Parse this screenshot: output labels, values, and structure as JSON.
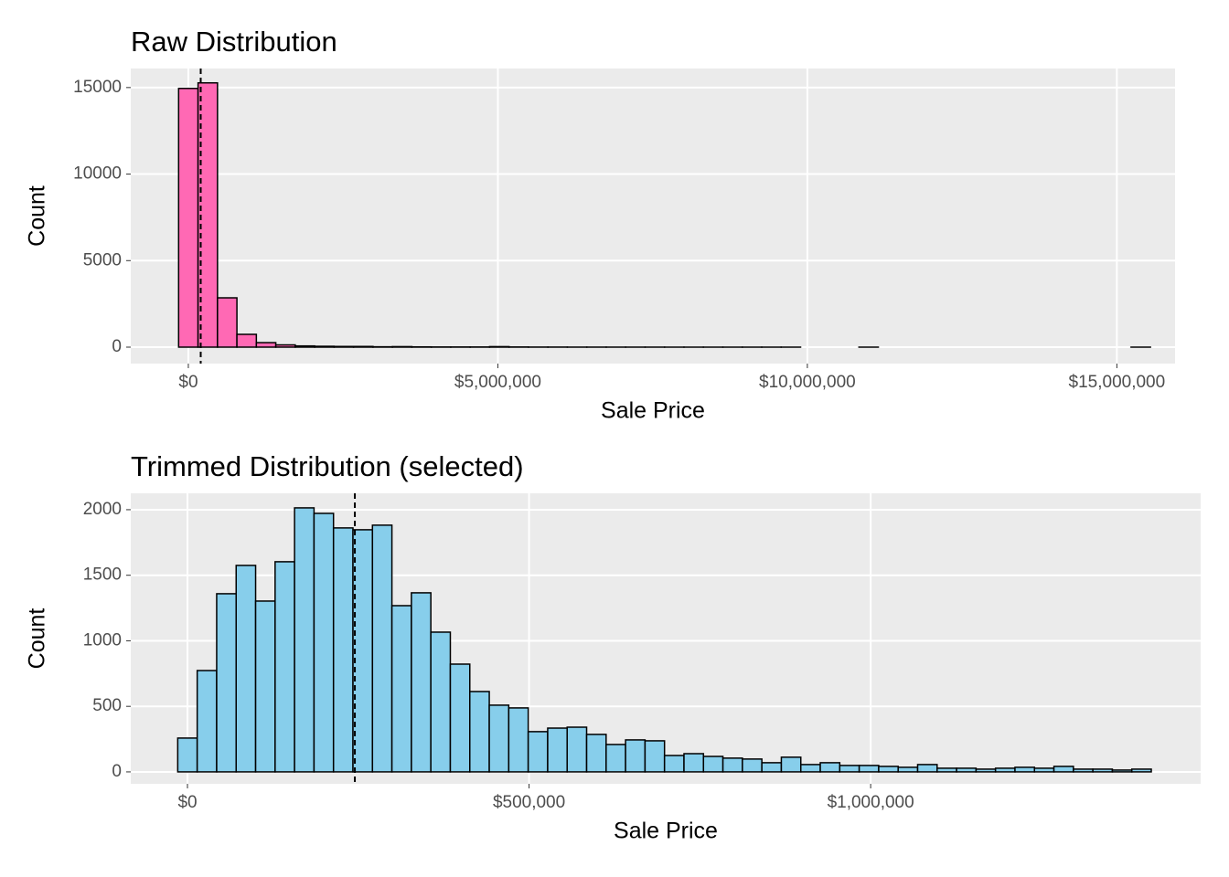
{
  "chart_data": [
    {
      "type": "histogram",
      "title": "Raw Distribution",
      "x_label": "Sale Price",
      "y_label": "Count",
      "color": "#ff69b4",
      "edge_color": "#000000",
      "grid": true,
      "bins": [
        -157000,
        157000,
        471000,
        785000,
        1099000,
        1413000,
        1727000,
        2041000,
        2355000,
        2669000,
        2983000,
        3297000,
        3611000,
        3925000,
        4239000,
        4553000,
        4867000,
        5181000,
        5495000,
        5809000,
        6123000,
        6437000,
        6751000,
        7065000,
        7379000,
        7693000,
        8007000,
        8321000,
        8635000,
        8949000,
        9263000,
        9577000,
        9891000,
        10205000,
        10519000,
        10833000,
        11147000,
        11461000,
        11775000,
        12089000,
        12403000,
        12717000,
        13031000,
        13345000,
        13659000,
        13973000,
        14287000,
        14601000,
        14915000,
        15229000,
        15543000
      ],
      "counts": [
        14950,
        15270,
        2850,
        740,
        260,
        130,
        70,
        50,
        40,
        40,
        20,
        30,
        15,
        10,
        10,
        10,
        30,
        10,
        5,
        5,
        3,
        3,
        2,
        2,
        2,
        1,
        1,
        1,
        1,
        1,
        1,
        1,
        0,
        0,
        0,
        1,
        0,
        0,
        0,
        0,
        0,
        0,
        0,
        0,
        0,
        0,
        0,
        0,
        0,
        1
      ],
      "vline": 200000,
      "xlim": [
        -930000,
        15940000
      ],
      "xticks": [
        {
          "value": 0,
          "label": "$0"
        },
        {
          "value": 5000000,
          "label": "$5,000,000"
        },
        {
          "value": 10000000,
          "label": "$10,000,000"
        },
        {
          "value": 15000000,
          "label": "$15,000,000"
        }
      ],
      "ylim": [
        -950,
        16100
      ],
      "yticks": [
        0,
        5000,
        10000,
        15000
      ]
    },
    {
      "type": "histogram",
      "title": "Trimmed Distribution (selected)",
      "x_label": "Sale Price",
      "y_label": "Count",
      "color": "#87ceeb",
      "edge_color": "#000000",
      "grid": true,
      "bins": [
        -14250,
        14250,
        42750,
        71250,
        99750,
        128250,
        156750,
        185250,
        213750,
        242250,
        270750,
        299250,
        327750,
        356250,
        384750,
        413250,
        441750,
        470250,
        498750,
        527250,
        555750,
        584250,
        612750,
        641250,
        669750,
        698250,
        726750,
        755250,
        783750,
        812250,
        840750,
        869250,
        897750,
        926250,
        954750,
        983250,
        1011750,
        1040250,
        1068750,
        1097250,
        1125750,
        1154250,
        1182750,
        1211250,
        1239750,
        1268250,
        1296750,
        1325250,
        1353750,
        1382250,
        1410750
      ],
      "counts": [
        258,
        773,
        1359,
        1575,
        1303,
        1603,
        2014,
        1972,
        1861,
        1847,
        1882,
        1268,
        1366,
        1066,
        822,
        613,
        509,
        488,
        307,
        334,
        341,
        286,
        209,
        244,
        237,
        125,
        139,
        118,
        105,
        98,
        70,
        112,
        56,
        70,
        49,
        49,
        42,
        35,
        56,
        28,
        28,
        21,
        28,
        35,
        28,
        42,
        21,
        21,
        14,
        21
      ],
      "vline": 245000,
      "xlim": [
        -83000,
        1483000
      ],
      "xticks": [
        {
          "value": 0,
          "label": "$0"
        },
        {
          "value": 500000,
          "label": "$500,000"
        },
        {
          "value": 1000000,
          "label": "$1,000,000"
        }
      ],
      "ylim": [
        -91,
        2125
      ],
      "yticks": [
        0,
        500,
        1000,
        1500,
        2000
      ]
    }
  ]
}
